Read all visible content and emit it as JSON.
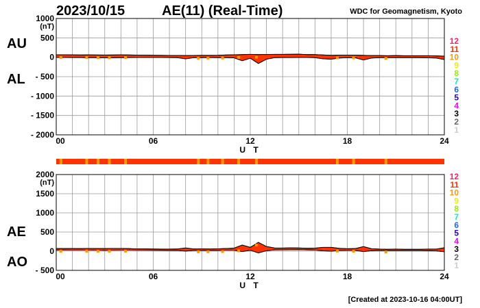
{
  "chart_data": [
    {
      "type": "area",
      "title": "AE(11) (Real-Time)",
      "date": "2023/10/15",
      "source": "WDC for Geomagnetism, Kyoto",
      "panel": "AU/AL",
      "labels_upper": "AU",
      "labels_lower": "AL",
      "unit": "(nT)",
      "xlabel": "U T",
      "xlim": [
        0,
        24
      ],
      "xticks": [
        "00",
        "06",
        "12",
        "18",
        "24"
      ],
      "ylim": [
        -2000,
        1000
      ],
      "yticks": [
        "1000",
        "500",
        "0",
        "- 500",
        "- 1000",
        "- 1500",
        "- 2000"
      ],
      "grid": true,
      "x": [
        0,
        0.5,
        1,
        1.5,
        2,
        2.5,
        3,
        3.5,
        4,
        4.5,
        5,
        5.5,
        6,
        6.5,
        7,
        7.5,
        8,
        8.5,
        9,
        9.5,
        10,
        10.5,
        11,
        11.5,
        12,
        12.5,
        13,
        13.5,
        14,
        14.5,
        15,
        15.5,
        16,
        16.5,
        17,
        17.5,
        18,
        18.5,
        19,
        19.5,
        20,
        20.5,
        21,
        21.5,
        22,
        22.5,
        23,
        23.5,
        24
      ],
      "series": [
        {
          "name": "AU",
          "values": [
            65,
            65,
            62,
            60,
            62,
            60,
            58,
            60,
            62,
            60,
            55,
            55,
            52,
            50,
            48,
            48,
            45,
            48,
            50,
            50,
            52,
            60,
            65,
            70,
            75,
            70,
            72,
            75,
            75,
            78,
            80,
            70,
            70,
            60,
            50,
            55,
            55,
            55,
            50,
            45,
            45,
            40,
            45,
            40,
            40,
            40,
            40,
            35,
            30
          ]
        },
        {
          "name": "AL",
          "values": [
            -5,
            -5,
            -8,
            -8,
            -10,
            -10,
            -12,
            -12,
            -10,
            -8,
            -5,
            -5,
            -5,
            -5,
            -8,
            -10,
            -40,
            -10,
            -10,
            -8,
            -10,
            -10,
            -15,
            -90,
            -25,
            -160,
            -50,
            -10,
            -8,
            -8,
            -5,
            -5,
            -10,
            -40,
            -50,
            -20,
            -10,
            -15,
            -70,
            -20,
            -10,
            -10,
            -10,
            -10,
            -10,
            -10,
            -15,
            -20,
            -60
          ]
        }
      ]
    },
    {
      "type": "area",
      "panel": "AE/AO",
      "labels_upper": "AE",
      "labels_lower": "AO",
      "unit": "(nT)",
      "xlabel": "U T",
      "xlim": [
        0,
        24
      ],
      "xticks": [
        "00",
        "06",
        "12",
        "18",
        "24"
      ],
      "ylim": [
        -500,
        2000
      ],
      "yticks": [
        "2000",
        "1500",
        "1000",
        "500",
        "0",
        "- 500"
      ],
      "grid": true,
      "series": [
        {
          "name": "AE",
          "derived": "AU - AL"
        },
        {
          "name": "AO",
          "derived": "(AU + AL) / 2"
        }
      ]
    }
  ],
  "station_strip_orange_hours": [
    0.2,
    1.8,
    2.5,
    3.2,
    4.2,
    8.7,
    9.3,
    10.2,
    11.2,
    12.3,
    17.3,
    18.3,
    20.3
  ],
  "legend": {
    "items": [
      {
        "label": "12",
        "color": "#ff1a75"
      },
      {
        "label": "11",
        "color": "#ff3300"
      },
      {
        "label": "10",
        "color": "#ff9900"
      },
      {
        "label": "9",
        "color": "#eeee00"
      },
      {
        "label": "8",
        "color": "#99ee00"
      },
      {
        "label": "7",
        "color": "#00eecc"
      },
      {
        "label": "6",
        "color": "#1a66ff"
      },
      {
        "label": "5",
        "color": "#2200dd"
      },
      {
        "label": "4",
        "color": "#ee00ee"
      },
      {
        "label": "3",
        "color": "#000000"
      },
      {
        "label": "2",
        "color": "#666666"
      },
      {
        "label": "1",
        "color": "#cccccc"
      }
    ]
  },
  "colors": {
    "fill": "#ff3300",
    "fill_alt": "#ff9900",
    "outline": "#000000"
  },
  "footer": "[Created at 2023-10-16 04:00UT]"
}
